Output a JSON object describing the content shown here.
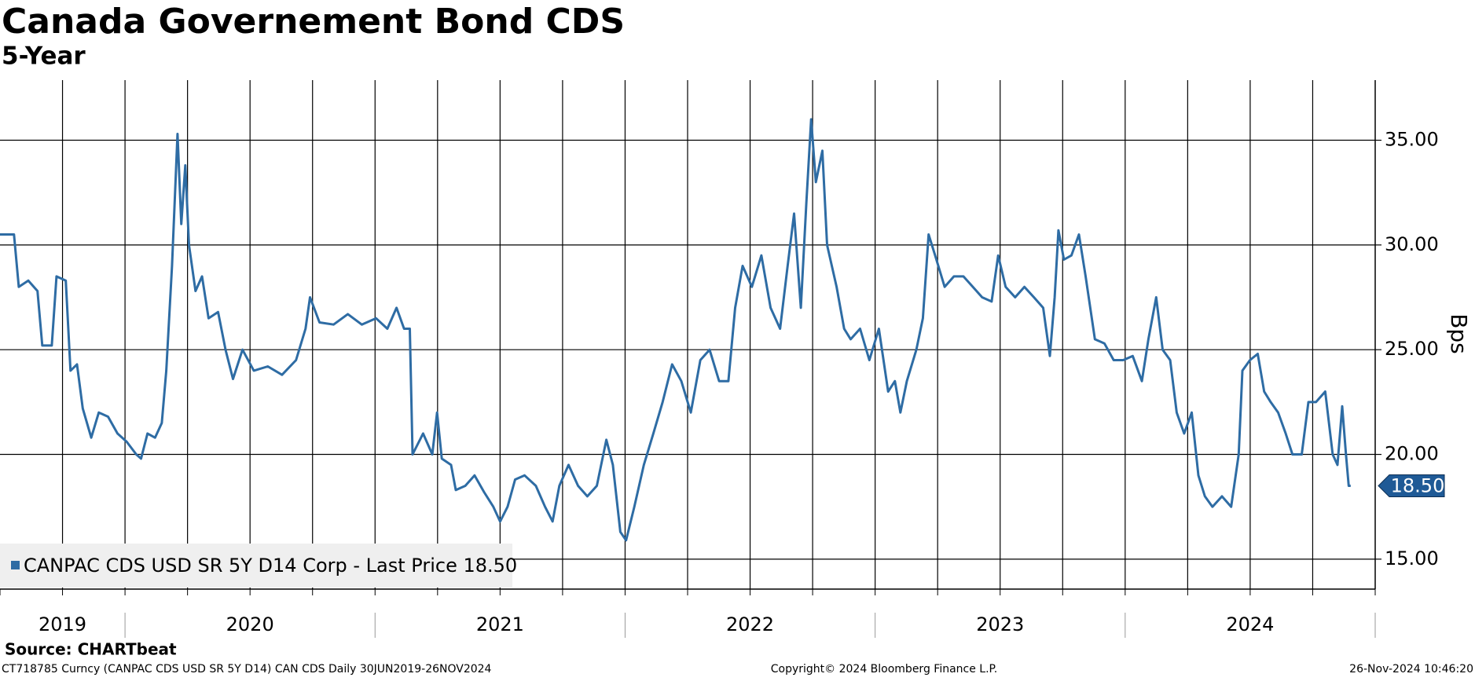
{
  "chart_data": {
    "type": "line",
    "title": "Canada Governement Bond CDS",
    "subtitle": "5-Year",
    "y_label": "Bps",
    "source": "Source: CHARTbeat",
    "footer_left": "CT718785 Curncy (CANPAC CDS USD SR 5Y D14) CAN CDS  Daily 30JUN2019-26NOV2024",
    "footer_center": "Copyright© 2024 Bloomberg Finance L.P.",
    "footer_right": "26-Nov-2024 10:46:20",
    "last_price": {
      "value": 18.5,
      "label": "18.50"
    },
    "legend": "lower left",
    "grid": true,
    "xlim": [
      2019.5,
      2025.0
    ],
    "xticks": [
      {
        "value": 2019.75,
        "label": "2019"
      },
      {
        "value": 2020.5,
        "label": "2020"
      },
      {
        "value": 2021.5,
        "label": "2021"
      },
      {
        "value": 2022.5,
        "label": "2022"
      },
      {
        "value": 2023.5,
        "label": "2023"
      },
      {
        "value": 2024.5,
        "label": "2024"
      }
    ],
    "ylim": [
      13.57,
      37.87
    ],
    "yticks": [
      {
        "value": 15,
        "label": "15.00"
      },
      {
        "value": 20,
        "label": "20.00"
      },
      {
        "value": 25,
        "label": "25.00"
      },
      {
        "value": 30,
        "label": "30.00"
      },
      {
        "value": 35,
        "label": "35.00"
      }
    ],
    "x": [
      2019.5,
      2019.556,
      2019.575,
      2019.613,
      2019.65,
      2019.669,
      2019.707,
      2019.726,
      2019.763,
      2019.782,
      2019.808,
      2019.831,
      2019.865,
      2019.895,
      2019.932,
      2019.97,
      2020.007,
      2020.045,
      2020.064,
      2020.09,
      2020.12,
      2020.147,
      2020.165,
      2020.188,
      2020.21,
      2020.225,
      2020.241,
      2020.256,
      2020.282,
      2020.308,
      2020.334,
      2020.372,
      2020.402,
      2020.432,
      2020.47,
      2020.515,
      2020.571,
      2020.628,
      2020.684,
      2020.722,
      2020.74,
      2020.778,
      2020.834,
      2020.891,
      2020.947,
      2021.004,
      2021.049,
      2021.086,
      2021.116,
      2021.139,
      2021.15,
      2021.192,
      2021.229,
      2021.248,
      2021.267,
      2021.304,
      2021.323,
      2021.361,
      2021.398,
      2021.436,
      2021.473,
      2021.5,
      2021.53,
      2021.56,
      2021.598,
      2021.643,
      2021.68,
      2021.71,
      2021.737,
      2021.774,
      2021.812,
      2021.849,
      2021.887,
      2021.925,
      2021.951,
      2021.981,
      2022.004,
      2022.037,
      2022.075,
      2022.113,
      2022.15,
      2022.188,
      2022.225,
      2022.263,
      2022.301,
      2022.338,
      2022.376,
      2022.413,
      2022.44,
      2022.47,
      2022.507,
      2022.545,
      2022.582,
      2022.62,
      2022.65,
      2022.676,
      2022.703,
      2022.725,
      2022.744,
      2022.763,
      2022.789,
      2022.808,
      2022.846,
      2022.876,
      2022.902,
      2022.94,
      2022.977,
      2023.015,
      2023.052,
      2023.079,
      2023.101,
      2023.127,
      2023.165,
      2023.191,
      2023.214,
      2023.24,
      2023.278,
      2023.315,
      2023.353,
      2023.391,
      2023.428,
      2023.466,
      2023.492,
      2023.522,
      2023.56,
      2023.597,
      2023.635,
      2023.672,
      2023.699,
      2023.718,
      2023.733,
      2023.755,
      2023.785,
      2023.815,
      2023.842,
      2023.879,
      2023.917,
      2023.954,
      2023.992,
      2024.03,
      2024.067,
      2024.093,
      2024.124,
      2024.15,
      2024.18,
      2024.206,
      2024.236,
      2024.266,
      2024.293,
      2024.319,
      2024.349,
      2024.387,
      2024.424,
      2024.454,
      2024.469,
      2024.499,
      2024.53,
      2024.556,
      2024.582,
      2024.612,
      2024.642,
      2024.669,
      2024.706,
      2024.733,
      2024.763,
      2024.8,
      2024.83,
      2024.849,
      2024.868,
      2024.883,
      2024.894,
      2024.902
    ],
    "series": [
      {
        "name": "CANPAC CDS USD SR 5Y D14 Corp - Last Price 18.50",
        "color": "#2e6ca4",
        "values": [
          30.5,
          30.5,
          28,
          28.3,
          27.8,
          25.2,
          25.2,
          28.5,
          28.3,
          24,
          24.3,
          22.2,
          20.8,
          22,
          21.8,
          21,
          20.6,
          20,
          19.8,
          21,
          20.8,
          21.5,
          24,
          29,
          35.3,
          31,
          33.8,
          30,
          27.8,
          28.5,
          26.5,
          26.8,
          25,
          23.6,
          25,
          24,
          24.2,
          23.8,
          24.5,
          26,
          27.5,
          26.3,
          26.2,
          26.7,
          26.2,
          26.5,
          26,
          27,
          26,
          26,
          20,
          21,
          20,
          22,
          19.8,
          19.5,
          18.3,
          18.5,
          19,
          18.2,
          17.5,
          16.8,
          17.5,
          18.8,
          19,
          18.5,
          17.5,
          16.8,
          18.5,
          19.5,
          18.5,
          18,
          18.5,
          20.7,
          19.5,
          16.3,
          15.9,
          17.5,
          19.5,
          21,
          22.5,
          24.3,
          23.5,
          22,
          24.5,
          25,
          23.5,
          23.5,
          27,
          29,
          28,
          29.5,
          27,
          26,
          29,
          31.5,
          27,
          32,
          36,
          33,
          34.5,
          30,
          28,
          26,
          25.5,
          26,
          24.5,
          26,
          23,
          23.5,
          22,
          23.5,
          25,
          26.5,
          30.5,
          29.5,
          28,
          28.5,
          28.5,
          28,
          27.5,
          27.3,
          29.5,
          28,
          27.5,
          28,
          27.5,
          27,
          24.7,
          27.5,
          30.7,
          29.3,
          29.5,
          30.5,
          28.5,
          25.5,
          25.3,
          24.5,
          24.5,
          24.7,
          23.5,
          25.5,
          27.5,
          25,
          24.5,
          22,
          21,
          22,
          19,
          18,
          17.5,
          18,
          17.5,
          20,
          24,
          24.5,
          24.8,
          23,
          22.5,
          22,
          21,
          20,
          20,
          22.5,
          22.5,
          23,
          20,
          19.5,
          22.3,
          20,
          18.5,
          18.5
        ]
      }
    ]
  }
}
